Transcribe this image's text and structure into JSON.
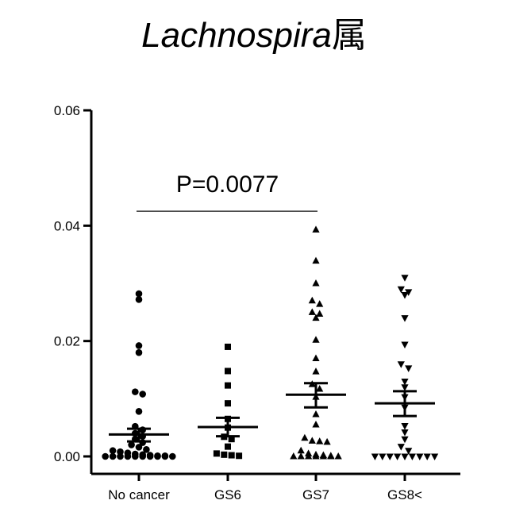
{
  "chart_data": {
    "type": "scatter",
    "title": "Lachnospira",
    "title_suffix": "属",
    "xlabel": "",
    "ylabel": "",
    "categories": [
      "No cancer",
      "GS6",
      "GS7",
      "GS8<"
    ],
    "ylim": [
      0,
      0.06
    ],
    "yticks": [
      "0.00",
      "0.02",
      "0.04",
      "0.06"
    ],
    "grid": false,
    "legend": "none",
    "marker_color": "#000000",
    "series": [
      {
        "category": "No cancer",
        "marker": "circle",
        "mean": 0.0038,
        "sem_low": 0.0026,
        "sem_high": 0.0048,
        "values": [
          0.0282,
          0.0272,
          0.0192,
          0.018,
          0.0112,
          0.0108,
          0.0078,
          0.0052,
          0.0046,
          0.004,
          0.0035,
          0.003,
          0.0024,
          0.002,
          0.0016,
          0.0012,
          0.001,
          0.0008,
          0.0006,
          0.0004,
          0.0003,
          0.0002,
          0.0001,
          0.0001,
          0.0,
          0.0,
          0.0,
          0.0,
          0.0,
          0.0,
          0.0,
          0.0,
          0.0,
          0.0
        ]
      },
      {
        "category": "GS6",
        "marker": "square",
        "mean": 0.0051,
        "sem_low": 0.0035,
        "sem_high": 0.0067,
        "values": [
          0.019,
          0.0148,
          0.0123,
          0.0092,
          0.0065,
          0.005,
          0.0034,
          0.003,
          0.0017,
          0.0005,
          0.0003,
          0.0002,
          0.0001
        ]
      },
      {
        "category": "GS7",
        "marker": "triangle-up",
        "mean": 0.0107,
        "sem_low": 0.0085,
        "sem_high": 0.0127,
        "values": [
          0.0393,
          0.0339,
          0.03,
          0.027,
          0.0264,
          0.025,
          0.0247,
          0.024,
          0.0202,
          0.017,
          0.0147,
          0.0125,
          0.0117,
          0.0103,
          0.0073,
          0.0055,
          0.0032,
          0.0027,
          0.0026,
          0.0025,
          0.001,
          0.0005,
          0.0003,
          0.0002,
          0.0001,
          0.0,
          0.0,
          0.0,
          0.0,
          0.0,
          0.0,
          0.0
        ]
      },
      {
        "category": "GS8<",
        "marker": "triangle-down",
        "mean": 0.0092,
        "sem_low": 0.007,
        "sem_high": 0.0113,
        "values": [
          0.031,
          0.029,
          0.0285,
          0.028,
          0.024,
          0.0194,
          0.016,
          0.0153,
          0.013,
          0.012,
          0.0103,
          0.0085,
          0.0053,
          0.0042,
          0.003,
          0.0017,
          0.001,
          0.0,
          0.0,
          0.0,
          0.0,
          0.0,
          0.0,
          0.0,
          0.0,
          0.0
        ]
      }
    ],
    "annotation": {
      "text": "P=0.0077",
      "from_category": "No cancer",
      "to_category": "GS7",
      "y": 0.0425
    }
  }
}
